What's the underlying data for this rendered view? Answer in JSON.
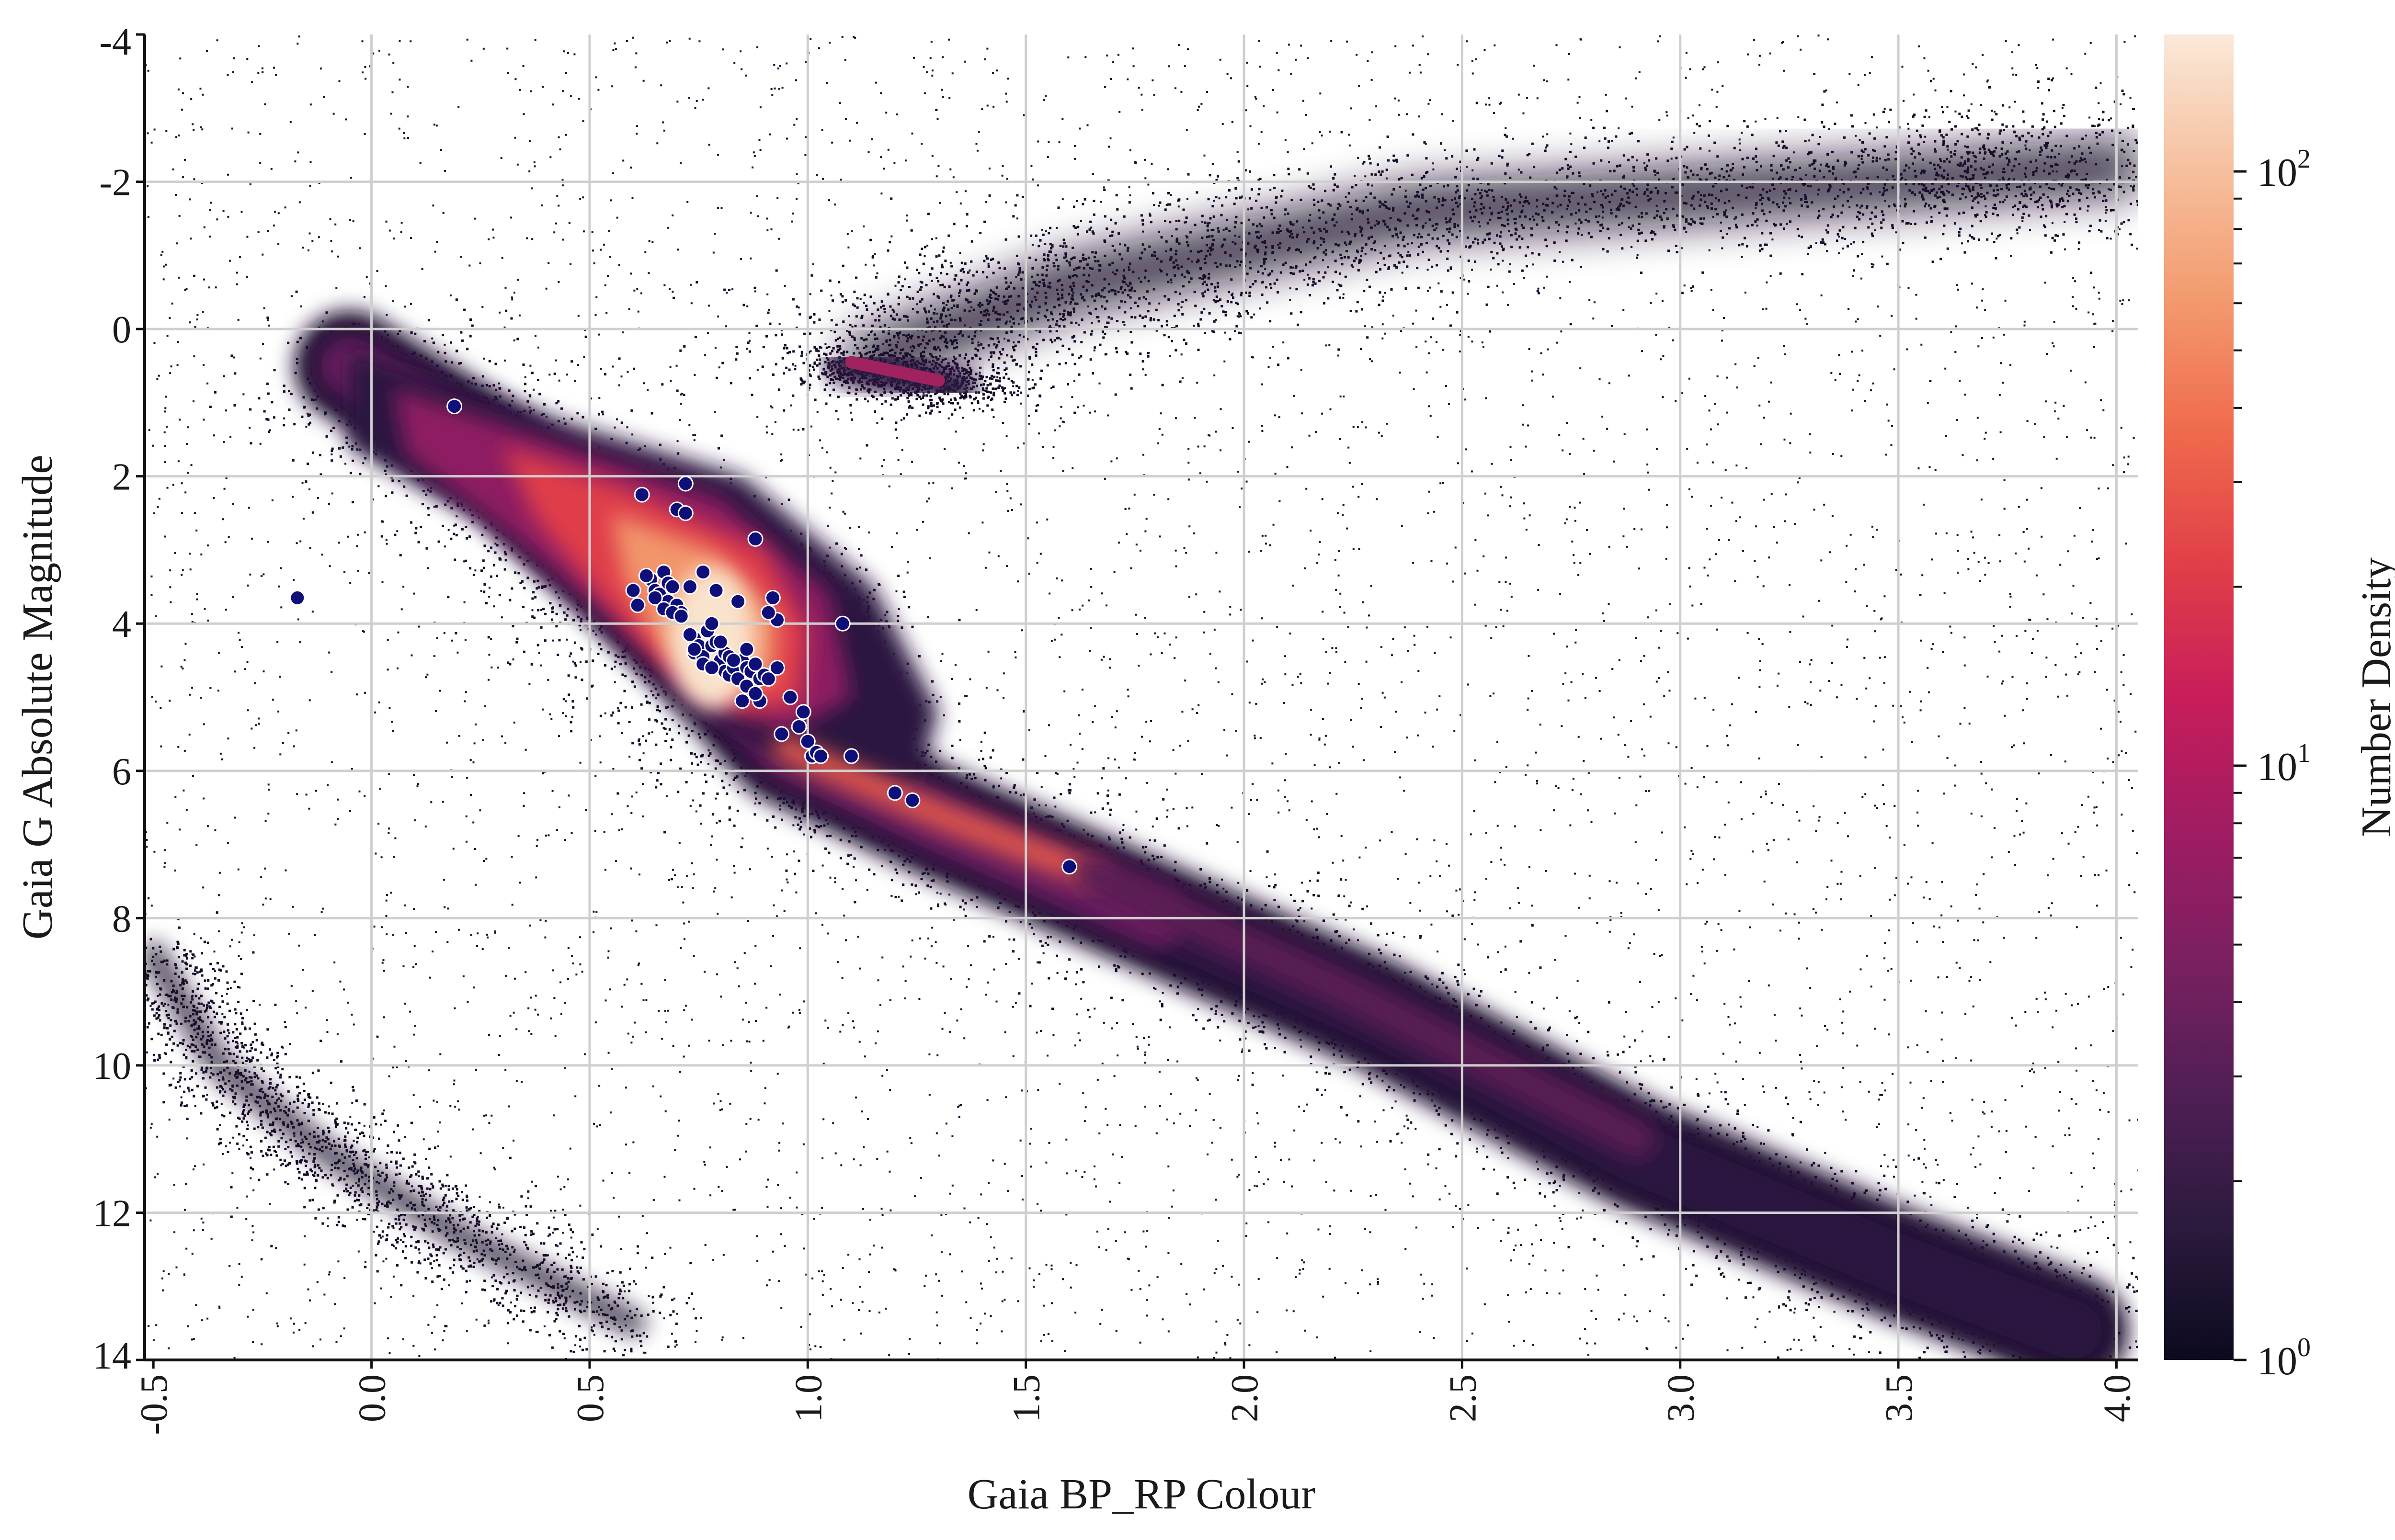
{
  "chart_data": {
    "type": "scatter",
    "title": "",
    "xlabel": "Gaia BP_RP Colour",
    "ylabel": "Gaia G Absolute Magnitude",
    "xlim": [
      -0.52,
      4.05
    ],
    "ylim": [
      14.0,
      -4.0
    ],
    "y_inverted": true,
    "grid": true,
    "xticks": [
      -0.5,
      0.0,
      0.5,
      1.0,
      1.5,
      2.0,
      2.5,
      3.0,
      3.5,
      4.0
    ],
    "xtick_labels": [
      "-0.5",
      "0.0",
      "0.5",
      "1.0",
      "1.5",
      "2.0",
      "2.5",
      "3.0",
      "3.5",
      "4.0"
    ],
    "yticks": [
      -4,
      -2,
      0,
      2,
      4,
      6,
      8,
      10,
      12,
      14
    ],
    "ytick_labels": [
      "-4",
      "-2",
      "0",
      "2",
      "4",
      "6",
      "8",
      "10",
      "12",
      "14"
    ],
    "colorbar": {
      "label": "Number Density",
      "scale": "log",
      "range": [
        1,
        170
      ],
      "ticks": [
        {
          "value": 1,
          "base": "10",
          "exp": "0"
        },
        {
          "value": 10,
          "base": "10",
          "exp": "1"
        },
        {
          "value": 100,
          "base": "10",
          "exp": "2"
        }
      ],
      "colormap": [
        "#0c0a1f",
        "#2b1a3d",
        "#4f1f55",
        "#7a2060",
        "#a01c63",
        "#c81d5a",
        "#e13f48",
        "#ef6a4c",
        "#f39a6e",
        "#f6c09f",
        "#fae9d9"
      ]
    },
    "density_background": {
      "description_series": "Gaia stellar density (2D histogram)",
      "max_density": 170,
      "components": [
        {
          "name": "main sequence",
          "path": [
            [
              -0.05,
              0.5
            ],
            [
              0.3,
              1.8
            ],
            [
              0.55,
              3.2
            ],
            [
              0.75,
              4.4
            ],
            [
              0.95,
              5.7
            ],
            [
              1.3,
              6.7
            ],
            [
              1.8,
              8.0
            ],
            [
              2.3,
              9.3
            ],
            [
              2.9,
              11.2
            ],
            [
              3.5,
              12.7
            ],
            [
              3.9,
              13.6
            ]
          ],
          "peak": [
            [
              0.55,
              4.0
            ],
            [
              0.85,
              4.3
            ]
          ]
        },
        {
          "name": "subgiant branch",
          "path": [
            [
              0.75,
              3.0
            ],
            [
              0.95,
              3.6
            ],
            [
              1.1,
              4.0
            ]
          ]
        },
        {
          "name": "red clump",
          "path": [
            [
              1.08,
              0.45
            ],
            [
              1.35,
              0.8
            ]
          ]
        },
        {
          "name": "giant branch",
          "path": [
            [
              1.15,
              0.4
            ],
            [
              1.6,
              -0.6
            ],
            [
              2.4,
              -1.6
            ],
            [
              3.5,
              -2.0
            ],
            [
              4.0,
              -2.2
            ]
          ]
        },
        {
          "name": "white dwarfs",
          "path": [
            [
              -0.5,
              8.5
            ],
            [
              -0.35,
              10.0
            ],
            [
              -0.1,
              11.2
            ],
            [
              0.2,
              12.3
            ],
            [
              0.6,
              13.5
            ]
          ]
        }
      ]
    },
    "series": [
      {
        "name": "selected stars",
        "color": "#0f0f7a",
        "marker": "circle",
        "x": [
          0.19,
          -0.17,
          0.62,
          0.64,
          0.65,
          0.66,
          0.67,
          0.68,
          0.68,
          0.69,
          0.7,
          0.7,
          0.71,
          0.72,
          0.73,
          0.74,
          0.74,
          0.75,
          0.76,
          0.76,
          0.77,
          0.78,
          0.78,
          0.79,
          0.79,
          0.8,
          0.81,
          0.81,
          0.82,
          0.82,
          0.83,
          0.84,
          0.84,
          0.85,
          0.85,
          0.86,
          0.86,
          0.87,
          0.88,
          0.88,
          0.89,
          0.89,
          0.9,
          0.91,
          0.92,
          0.93,
          0.94,
          0.96,
          0.98,
          0.99,
          1.0,
          1.01,
          1.02,
          1.03,
          1.08,
          1.1,
          1.2,
          1.24,
          1.6,
          0.6,
          0.61,
          0.63,
          0.65,
          0.67,
          0.69,
          0.71,
          0.73,
          0.74,
          0.76,
          0.78,
          0.8,
          0.83,
          0.86,
          0.88,
          0.91,
          0.93,
          0.72
        ],
        "y": [
          1.05,
          3.65,
          2.25,
          3.4,
          3.55,
          3.6,
          3.3,
          3.45,
          3.7,
          3.5,
          2.45,
          3.75,
          3.85,
          2.5,
          3.5,
          4.2,
          4.4,
          4.3,
          3.3,
          4.45,
          4.1,
          4.0,
          4.3,
          3.55,
          4.25,
          4.5,
          4.4,
          4.65,
          4.7,
          4.45,
          4.6,
          3.7,
          4.75,
          4.5,
          5.05,
          4.35,
          4.6,
          4.65,
          2.85,
          4.55,
          4.75,
          5.05,
          4.7,
          4.75,
          3.65,
          3.95,
          5.5,
          5.0,
          5.4,
          5.2,
          5.6,
          5.8,
          5.75,
          5.8,
          4.0,
          5.8,
          6.3,
          6.4,
          7.3,
          3.55,
          3.75,
          3.35,
          3.65,
          3.8,
          3.85,
          3.9,
          4.15,
          4.35,
          4.55,
          4.6,
          4.25,
          4.5,
          4.85,
          4.95,
          3.85,
          4.6,
          2.1
        ]
      }
    ]
  }
}
